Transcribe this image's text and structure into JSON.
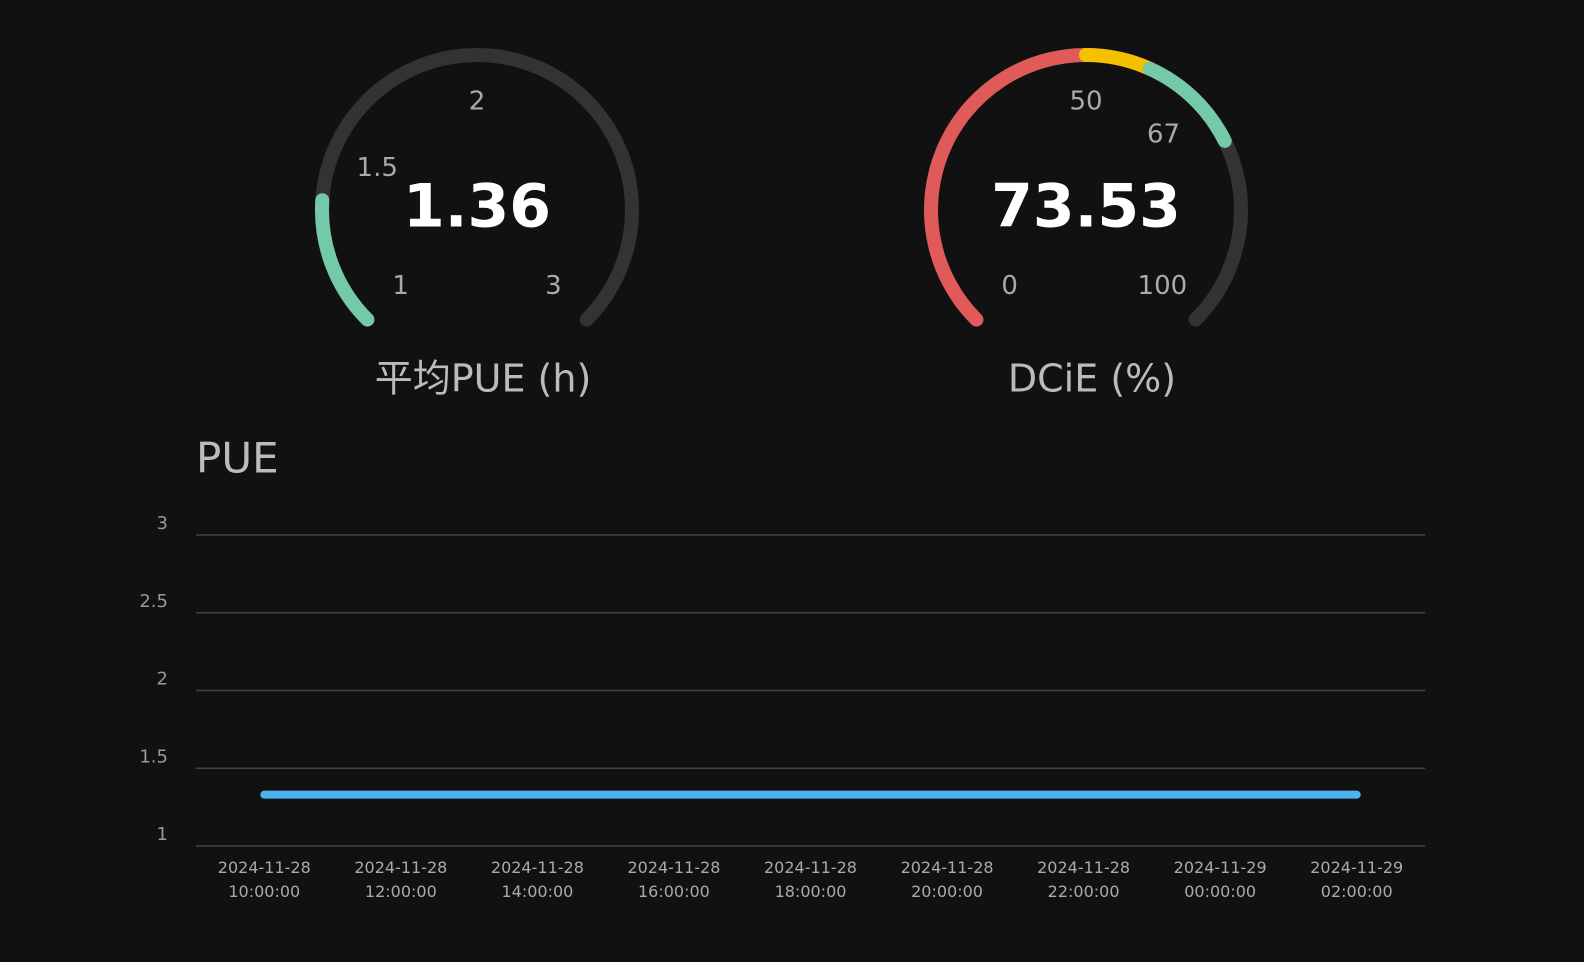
{
  "chart_data": [
    {
      "type": "gauge",
      "title": "平均PUE (h)",
      "value": 1.36,
      "range": [
        1,
        3
      ],
      "ticks": [
        1,
        1.5,
        2,
        3
      ],
      "color": "#73c9a8",
      "track_color": "#333333"
    },
    {
      "type": "gauge",
      "title": "DCiE (%)",
      "value": 73.53,
      "range": [
        0,
        100
      ],
      "ticks": [
        0,
        50,
        67,
        100
      ],
      "track_color": "#333333",
      "bands": [
        {
          "from": 0,
          "to": 50,
          "color": "#e05a5a"
        },
        {
          "from": 50,
          "to": 59,
          "color": "#f5c000"
        },
        {
          "from": 59,
          "to": 100,
          "color": "#73c9a8"
        }
      ]
    },
    {
      "type": "line",
      "title": "PUE",
      "categories": [
        "2024-11-28 10:00:00",
        "2024-11-28 12:00:00",
        "2024-11-28 14:00:00",
        "2024-11-28 16:00:00",
        "2024-11-28 18:00:00",
        "2024-11-28 20:00:00",
        "2024-11-28 22:00:00",
        "2024-11-29 00:00:00",
        "2024-11-29 02:00:00"
      ],
      "values": [
        1.33,
        1.33,
        1.33,
        1.33,
        1.33,
        1.33,
        1.33,
        1.33,
        1.33
      ],
      "color": "#4db3f0",
      "ylim": [
        1,
        3
      ],
      "yticks": [
        1,
        1.5,
        2,
        2.5,
        3
      ],
      "grid": true
    }
  ]
}
